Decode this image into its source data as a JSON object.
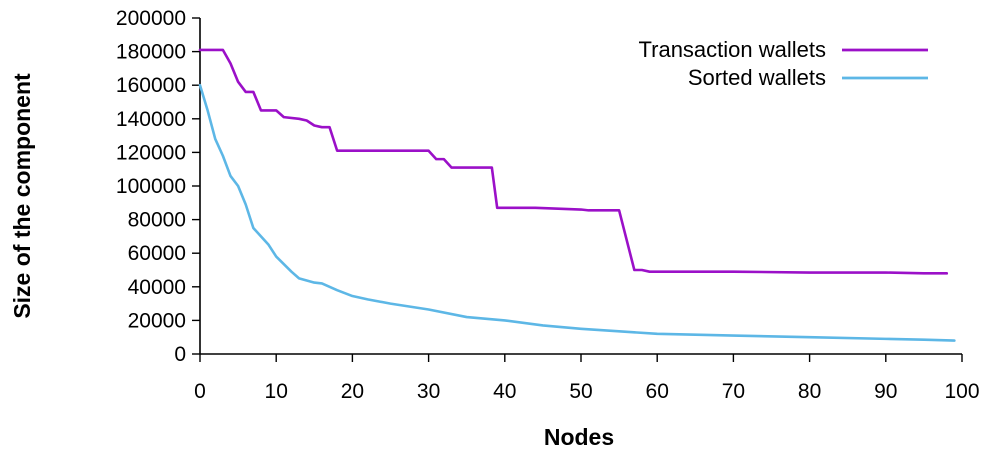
{
  "chart_data": {
    "type": "line",
    "xlabel": "Nodes",
    "ylabel": "Size of the component",
    "xlim": [
      0,
      100
    ],
    "ylim": [
      0,
      200000
    ],
    "xticks": [
      0,
      10,
      20,
      30,
      40,
      50,
      60,
      70,
      80,
      90,
      100
    ],
    "yticks": [
      0,
      20000,
      40000,
      60000,
      80000,
      100000,
      120000,
      140000,
      160000,
      180000,
      200000
    ],
    "grid": false,
    "legend_position": "top-right",
    "series": [
      {
        "name": "Transaction wallets",
        "color": "#9b10c8",
        "points": [
          [
            0,
            181000
          ],
          [
            3,
            181000
          ],
          [
            4,
            173000
          ],
          [
            5,
            162000
          ],
          [
            6,
            156000
          ],
          [
            7,
            156000
          ],
          [
            8,
            145000
          ],
          [
            10,
            145000
          ],
          [
            11,
            141000
          ],
          [
            13,
            140000
          ],
          [
            14,
            139000
          ],
          [
            15,
            136000
          ],
          [
            16,
            135000
          ],
          [
            17,
            135000
          ],
          [
            18,
            121000
          ],
          [
            23,
            121000
          ],
          [
            30,
            121000
          ],
          [
            31,
            116000
          ],
          [
            32,
            116000
          ],
          [
            33,
            111000
          ],
          [
            38.3,
            111000
          ],
          [
            39,
            87000
          ],
          [
            44,
            87000
          ],
          [
            50,
            86000
          ],
          [
            51,
            85500
          ],
          [
            55,
            85500
          ],
          [
            57,
            50000
          ],
          [
            58,
            50000
          ],
          [
            59,
            49000
          ],
          [
            70,
            49000
          ],
          [
            80,
            48500
          ],
          [
            90,
            48500
          ],
          [
            95,
            48000
          ],
          [
            98,
            48000
          ]
        ]
      },
      {
        "name": "Sorted wallets",
        "color": "#5db7e6",
        "points": [
          [
            0,
            160000
          ],
          [
            1,
            145000
          ],
          [
            2,
            128000
          ],
          [
            3,
            118000
          ],
          [
            4,
            106000
          ],
          [
            5,
            100000
          ],
          [
            6,
            89000
          ],
          [
            7,
            75000
          ],
          [
            8,
            70000
          ],
          [
            9,
            65000
          ],
          [
            10,
            58000
          ],
          [
            12,
            49000
          ],
          [
            13,
            45000
          ],
          [
            15,
            42500
          ],
          [
            16,
            42000
          ],
          [
            18,
            38000
          ],
          [
            20,
            34500
          ],
          [
            22,
            32500
          ],
          [
            25,
            30000
          ],
          [
            30,
            26500
          ],
          [
            35,
            22000
          ],
          [
            40,
            20000
          ],
          [
            45,
            17000
          ],
          [
            50,
            15000
          ],
          [
            55,
            13500
          ],
          [
            60,
            12000
          ],
          [
            70,
            11000
          ],
          [
            80,
            10000
          ],
          [
            90,
            9000
          ],
          [
            95,
            8500
          ],
          [
            99,
            8000
          ]
        ]
      }
    ]
  }
}
